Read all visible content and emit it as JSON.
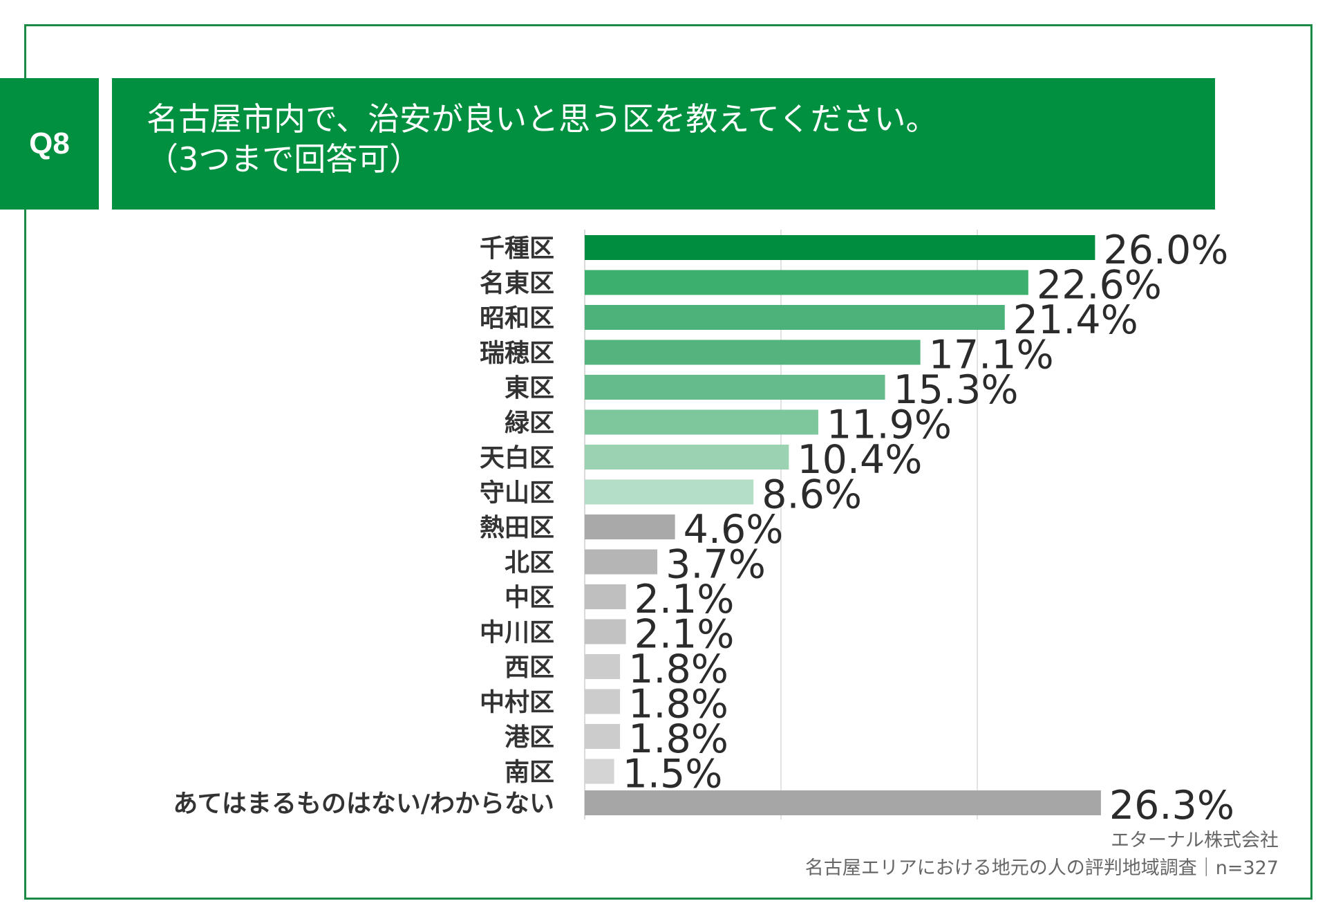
{
  "question": {
    "number": "Q8",
    "title_line1": "名古屋市内で、治安が良いと思う区を教えてください。",
    "title_line2": "（3つまで回答可）"
  },
  "source": {
    "company": "エターナル株式会社",
    "survey": "名古屋エリアにおける地元の人の評判地域調査｜n=327"
  },
  "colors": {
    "frame": "#1a8a45",
    "header": "#009040",
    "grid": "#d9d9d9",
    "label": "#333333"
  },
  "chart_data": {
    "type": "bar",
    "orientation": "horizontal",
    "title": "名古屋市内で、治安が良いと思う区を教えてください。（3つまで回答可）",
    "xlim": [
      0,
      28
    ],
    "value_suffix": "%",
    "grid": true,
    "categories": [
      "千種区",
      "名東区",
      "昭和区",
      "瑞穂区",
      "東区",
      "緑区",
      "天白区",
      "守山区",
      "熱田区",
      "北区",
      "中区",
      "中川区",
      "西区",
      "中村区",
      "港区",
      "南区",
      "あてはまるものはない/わからない"
    ],
    "values": [
      26.0,
      22.6,
      21.4,
      17.1,
      15.3,
      11.9,
      10.4,
      8.6,
      4.6,
      3.7,
      2.1,
      2.1,
      1.8,
      1.8,
      1.8,
      1.5,
      26.3
    ],
    "labels": [
      "26.0%",
      "22.6%",
      "21.4%",
      "17.1%",
      "15.3%",
      "11.9%",
      "10.4%",
      "8.6%",
      "4.6%",
      "3.7%",
      "2.1%",
      "2.1%",
      "1.8%",
      "1.8%",
      "1.8%",
      "1.5%",
      "26.3%"
    ],
    "bar_colors": [
      "#008d3f",
      "#3daf6c",
      "#4cb27a",
      "#55b47e",
      "#65bb8b",
      "#7ec79d",
      "#9bd3b2",
      "#b4dfc6",
      "#a9a9a9",
      "#b5b5b5",
      "#bfbfbf",
      "#c2c2c2",
      "#cccccc",
      "#cccccc",
      "#cccccc",
      "#d4d4d4",
      "#a6a6a6"
    ]
  }
}
